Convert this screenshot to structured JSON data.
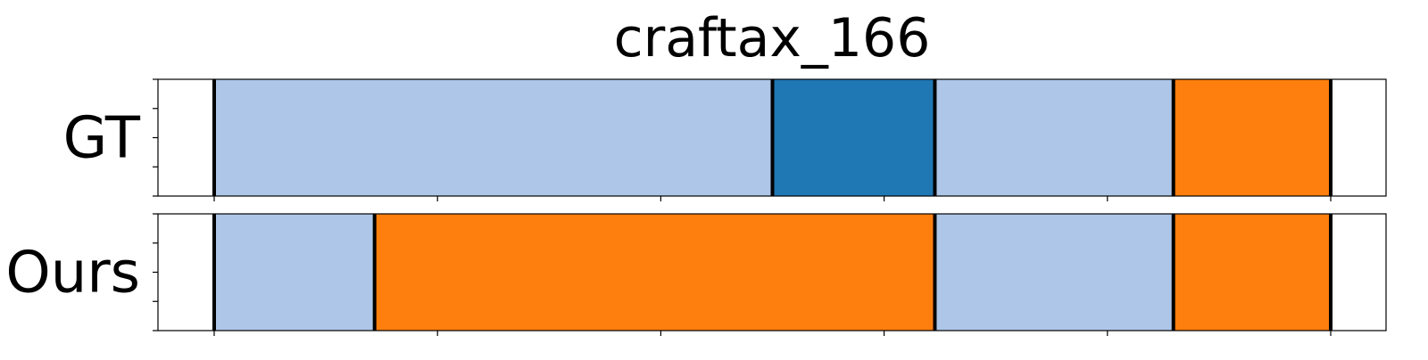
{
  "chart_data": {
    "type": "segmentation-bar",
    "title": "craftax_166",
    "xlim": [
      0,
      110
    ],
    "x_ticks": [
      5,
      27,
      49,
      71,
      93,
      115
    ],
    "y_ticks_per_panel": 5,
    "class_colors": {
      "light-blue": "#aec7e8",
      "dark-blue": "#1f77b4",
      "orange": "#ff7f0e"
    },
    "rows": [
      {
        "label": "GT",
        "segments": [
          {
            "start": 5,
            "end": 60,
            "color": "light-blue"
          },
          {
            "start": 60,
            "end": 76,
            "color": "dark-blue"
          },
          {
            "start": 76,
            "end": 99.5,
            "color": "light-blue"
          },
          {
            "start": 99.5,
            "end": 115,
            "color": "orange"
          }
        ]
      },
      {
        "label": "Ours",
        "segments": [
          {
            "start": 5,
            "end": 20.8,
            "color": "light-blue"
          },
          {
            "start": 20.8,
            "end": 76,
            "color": "orange"
          },
          {
            "start": 76,
            "end": 99.5,
            "color": "light-blue"
          },
          {
            "start": 99.5,
            "end": 115,
            "color": "orange"
          }
        ]
      }
    ]
  }
}
